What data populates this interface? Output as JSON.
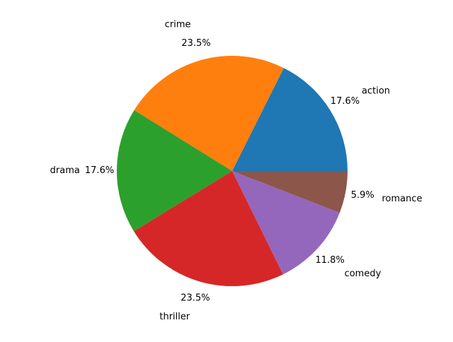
{
  "chart_data": {
    "type": "pie",
    "title": "",
    "categories": [
      "action",
      "crime",
      "drama",
      "thriller",
      "comedy",
      "romance"
    ],
    "values": [
      17.6,
      23.5,
      17.6,
      23.5,
      11.8,
      5.9
    ],
    "percent_labels": [
      "17.6%",
      "23.5%",
      "17.6%",
      "23.5%",
      "11.8%",
      "5.9%"
    ],
    "colors": [
      "#1f77b4",
      "#ff7f0e",
      "#2ca02c",
      "#d62728",
      "#9467bd",
      "#8c564b"
    ],
    "start_angle_deg": 0,
    "direction": "counterclockwise",
    "legend": false
  }
}
